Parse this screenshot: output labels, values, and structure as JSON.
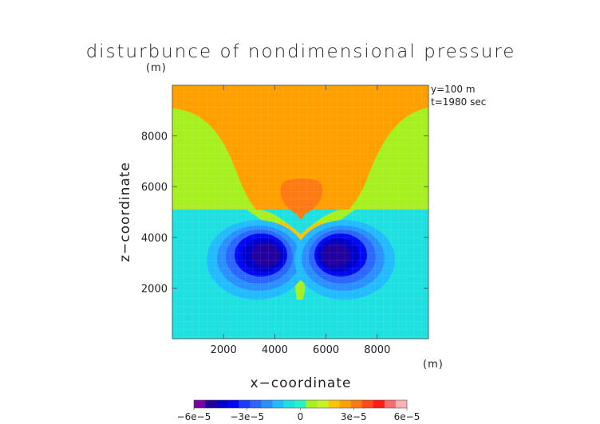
{
  "chart_data": {
    "type": "heatmap",
    "title": "disturbunce of nondimensional pressure",
    "xlabel": "x−coordinate",
    "ylabel": "z−coordinate",
    "x_unit": "(m)",
    "y_unit": "(m)",
    "xlim": [
      0,
      10000
    ],
    "ylim": [
      0,
      10000
    ],
    "x_ticks": [
      2000,
      4000,
      6000,
      8000
    ],
    "y_ticks": [
      2000,
      4000,
      6000,
      8000
    ],
    "x_tick_labels": [
      "2000",
      "4000",
      "6000",
      "8000"
    ],
    "y_tick_labels": [
      "2000",
      "4000",
      "6000",
      "8000"
    ],
    "annotations": [
      "y=100 m",
      "t=1980 sec"
    ],
    "colorbar": {
      "ticks": [
        -6e-05,
        -3e-05,
        0,
        3e-05,
        6e-05
      ],
      "tick_labels": [
        "−6e−5",
        "−3e−5",
        "0",
        "3e−5",
        "6e−5"
      ],
      "colors": [
        "#7a00a8",
        "#2200a0",
        "#0000c8",
        "#0008f0",
        "#1a3cff",
        "#2a66ff",
        "#2a90ff",
        "#22bbff",
        "#1fe0e0",
        "#2cf0c8",
        "#a6f020",
        "#c6f028",
        "#ffc20a",
        "#ffa000",
        "#ff7a12",
        "#ff4c14",
        "#ff1c10",
        "#ff6a6a",
        "#ffb0b0"
      ]
    },
    "regions": [
      {
        "name": "upper positive",
        "level": 2e-05,
        "color": "#ffa000"
      },
      {
        "name": "central maximum",
        "level": 3e-05,
        "color": "#ff7a12",
        "center": [
          5000,
          5500
        ]
      },
      {
        "name": "mid band",
        "level": 5e-06,
        "color": "#a6f020"
      },
      {
        "name": "lower background",
        "level": -5e-06,
        "color": "#1fe0e0"
      },
      {
        "name": "left minimum",
        "level": -4e-05,
        "center": [
          3600,
          3400
        ]
      },
      {
        "name": "right minimum",
        "level": -4e-05,
        "center": [
          6300,
          3400
        ]
      },
      {
        "name": "small positive patch",
        "level": 5e-06,
        "center": [
          4950,
          1800
        ]
      }
    ]
  }
}
